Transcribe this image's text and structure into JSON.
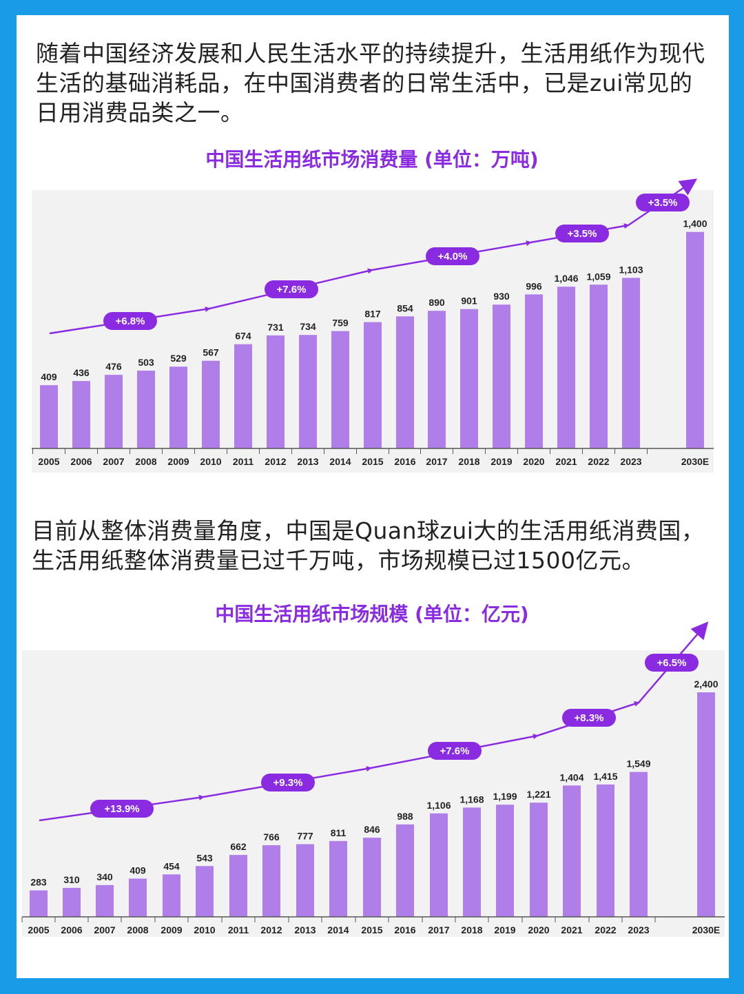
{
  "paragraphs": {
    "intro": "随着中国经济发展和人民生活水平的持续提升，生活用纸作为现代生活的基础消耗品，在中国消费者的日常生活中，已是zui常见的日用消费品类之一。",
    "second": "目前从整体消费量角度，中国是Quan球zui大的生活用纸消费国，生活用纸整体消费量已过千万吨，市场规模已过1500亿元。"
  },
  "colors": {
    "background": "#1a9be8",
    "bar": "#b07ee8",
    "accent": "#8a2be2",
    "plot_bg": "#f2f2f2"
  },
  "chart_data": [
    {
      "type": "bar",
      "title": "中国生活用纸市场消费量 (单位：万吨)",
      "categories": [
        "2005",
        "2006",
        "2007",
        "2008",
        "2009",
        "2010",
        "2011",
        "2012",
        "2013",
        "2014",
        "2015",
        "2016",
        "2017",
        "2018",
        "2019",
        "2020",
        "2021",
        "2022",
        "2023",
        "2030E"
      ],
      "values": [
        409,
        436,
        476,
        503,
        529,
        567,
        674,
        731,
        734,
        759,
        817,
        854,
        890,
        901,
        930,
        996,
        1046,
        1059,
        1103,
        1400
      ],
      "value_labels": [
        "409",
        "436",
        "476",
        "503",
        "529",
        "567",
        "674",
        "731",
        "734",
        "759",
        "817",
        "854",
        "890",
        "901",
        "930",
        "996",
        "1,046",
        "1,059",
        "1,103",
        "1,400"
      ],
      "ylim": [
        0,
        1500
      ],
      "grid": false,
      "trend_annotations": [
        "+6.8%",
        "+7.6%",
        "+4.0%",
        "+3.5%",
        "+3.5%"
      ]
    },
    {
      "type": "bar",
      "title": "中国生活用纸市场规模 (单位：亿元)",
      "categories": [
        "2005",
        "2006",
        "2007",
        "2008",
        "2009",
        "2010",
        "2011",
        "2012",
        "2013",
        "2014",
        "2015",
        "2016",
        "2017",
        "2018",
        "2019",
        "2020",
        "2021",
        "2022",
        "2023",
        "2030E"
      ],
      "values": [
        283,
        310,
        340,
        409,
        454,
        543,
        662,
        766,
        777,
        811,
        846,
        988,
        1106,
        1168,
        1199,
        1221,
        1404,
        1415,
        1549,
        2400
      ],
      "value_labels": [
        "283",
        "310",
        "340",
        "409",
        "454",
        "543",
        "662",
        "766",
        "777",
        "811",
        "846",
        "988",
        "1,106",
        "1,168",
        "1,199",
        "1,221",
        "1,404",
        "1,415",
        "1,549",
        "2,400"
      ],
      "ylim": [
        0,
        2550
      ],
      "grid": false,
      "trend_annotations": [
        "+13.9%",
        "+9.3%",
        "+7.6%",
        "+8.3%",
        "+6.5%"
      ]
    }
  ]
}
